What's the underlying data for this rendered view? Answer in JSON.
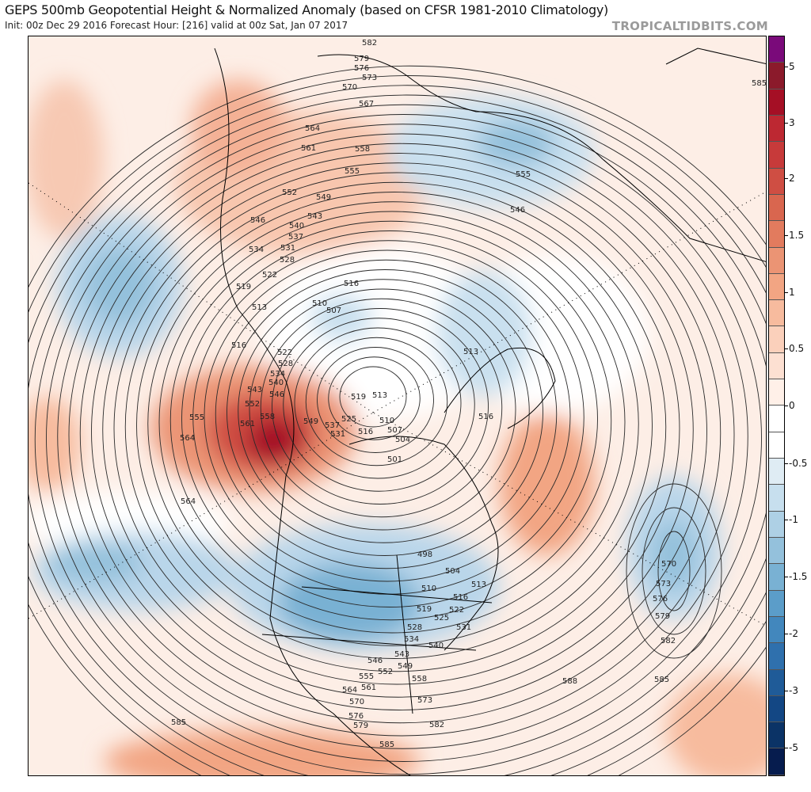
{
  "header": {
    "title": "GEPS 500mb Geopotential Height & Normalized Anomaly (based on CFSR 1981-2010 Climatology)",
    "subtitle": "Init: 00z Dec 29 2016   Forecast Hour: [216]   valid at 00z Sat, Jan 07 2017",
    "brand": "TROPICALTIDBITS.COM"
  },
  "colorbar": {
    "ticks": [
      "5",
      "3",
      "2",
      "1.5",
      "1",
      "0.5",
      "0",
      "-0.5",
      "-1",
      "-1.5",
      "-2",
      "-3",
      "-5"
    ],
    "colors": [
      "#7a0a7a",
      "#8b1a2b",
      "#a50f25",
      "#bd2832",
      "#c73a3a",
      "#cf4e43",
      "#d9664f",
      "#e27b5e",
      "#eb9474",
      "#f2a583",
      "#f7bb9e",
      "#fbd0bb",
      "#fde0d2",
      "#fff0e8",
      "#ffffff",
      "#ffffff",
      "#dfecf4",
      "#c7dfee",
      "#aed0e5",
      "#94c1dc",
      "#79b1d3",
      "#5b9dc9",
      "#4287bd",
      "#2f70ad",
      "#1f5b98",
      "#134784",
      "#0b3366",
      "#061c4e"
    ]
  },
  "map": {
    "contour_labels": [
      "582",
      "579",
      "576",
      "573",
      "570",
      "567",
      "564",
      "561",
      "558",
      "555",
      "552",
      "549",
      "546",
      "543",
      "540",
      "537",
      "534",
      "531",
      "528",
      "522",
      "519",
      "516",
      "513",
      "510",
      "507",
      "516",
      "522",
      "528",
      "534",
      "540",
      "543",
      "546",
      "552",
      "558",
      "555",
      "561",
      "564",
      "549",
      "537",
      "525",
      "519",
      "513",
      "531",
      "516",
      "510",
      "507",
      "504",
      "501",
      "498",
      "504",
      "510",
      "513",
      "516",
      "522",
      "519",
      "525",
      "531",
      "528",
      "534",
      "540",
      "543",
      "546",
      "549",
      "552",
      "555",
      "558",
      "561",
      "564",
      "570",
      "573",
      "576",
      "579",
      "582",
      "585",
      "588",
      "585",
      "564",
      "513",
      "516",
      "546",
      "555",
      "570",
      "573",
      "576",
      "579",
      "582",
      "585",
      "585"
    ]
  }
}
